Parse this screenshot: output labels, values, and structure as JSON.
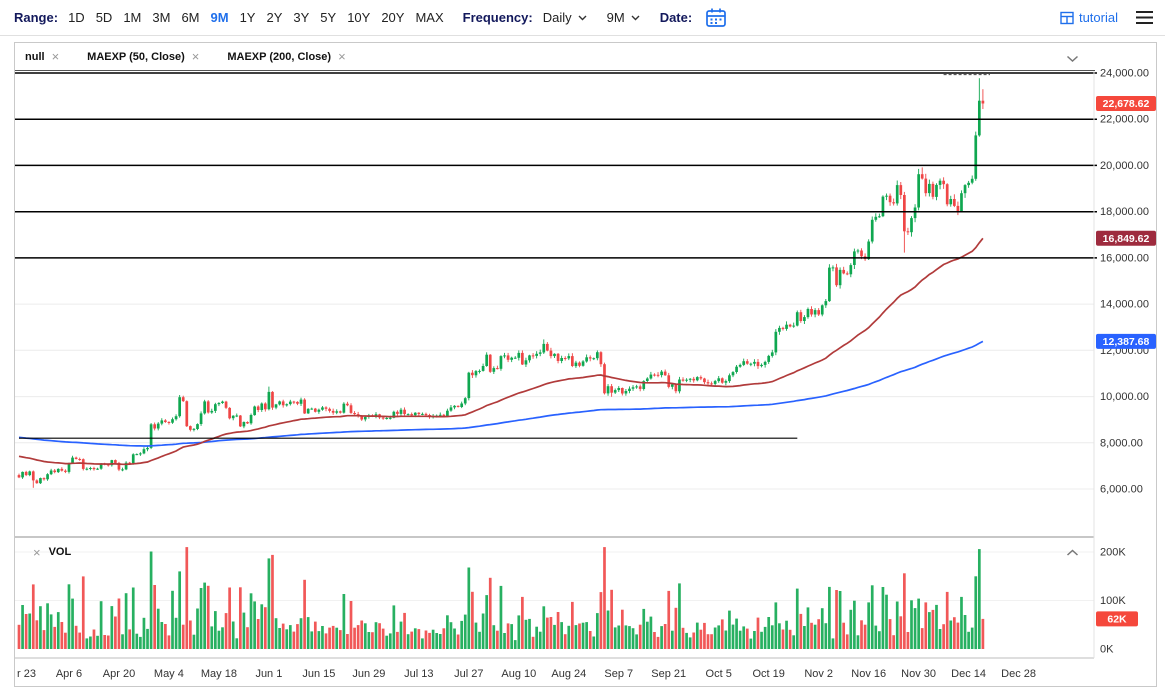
{
  "toolbar": {
    "range_label": "Range:",
    "ranges": [
      "1D",
      "5D",
      "1M",
      "3M",
      "6M",
      "9M",
      "1Y",
      "2Y",
      "3Y",
      "5Y",
      "10Y",
      "20Y",
      "MAX"
    ],
    "active_range": "9M",
    "frequency_label": "Frequency:",
    "frequency_value": "Daily",
    "period_value": "9M",
    "date_label": "Date:",
    "tutorial_label": "tutorial"
  },
  "legend": {
    "items": [
      {
        "label": "null"
      },
      {
        "label": "MAEXP (50, Close)"
      },
      {
        "label": "MAEXP (200, Close)"
      }
    ]
  },
  "vol_pane": {
    "label": "VOL"
  },
  "colors": {
    "up": "#0fa750",
    "down": "#ef4646",
    "ema50": "#b13b3b",
    "ema200": "#2962ff",
    "accent_blue": "#1f6feb",
    "level_line": "#000000"
  },
  "chart_data": {
    "type": "candlestick",
    "frequency": "Daily",
    "ylim": [
      3900,
      24100
    ],
    "price_ticks": [
      [
        24000,
        "24,000.00"
      ],
      [
        22000,
        "22,000.00"
      ],
      [
        20000,
        "20,000.00"
      ],
      [
        18000,
        "18,000.00"
      ],
      [
        16000,
        "16,000.00"
      ],
      [
        14000,
        "14,000.00"
      ],
      [
        12000,
        "12,000.00"
      ],
      [
        10000,
        "10,000.00"
      ],
      [
        8000,
        "8,000.00"
      ],
      [
        6000,
        "6,000.00"
      ]
    ],
    "vol_ticks": [
      [
        200,
        "200K"
      ],
      [
        100,
        "100K"
      ],
      [
        0,
        "0K"
      ]
    ],
    "x_ticks": [
      [
        0,
        "r 23"
      ],
      [
        14,
        "Apr 6"
      ],
      [
        28,
        "Apr 20"
      ],
      [
        42,
        "May 4"
      ],
      [
        56,
        "May 18"
      ],
      [
        70,
        "Jun 1"
      ],
      [
        84,
        "Jun 15"
      ],
      [
        98,
        "Jun 29"
      ],
      [
        112,
        "Jul 13"
      ],
      [
        126,
        "Jul 27"
      ],
      [
        140,
        "Aug 10"
      ],
      [
        154,
        "Aug 24"
      ],
      [
        168,
        "Sep 7"
      ],
      [
        182,
        "Sep 21"
      ],
      [
        196,
        "Oct 5"
      ],
      [
        210,
        "Oct 19"
      ],
      [
        224,
        "Nov 2"
      ],
      [
        238,
        "Nov 16"
      ],
      [
        252,
        "Nov 30"
      ],
      [
        266,
        "Dec 14"
      ],
      [
        280,
        "Dec 28"
      ]
    ],
    "levels": [
      24000,
      22000,
      20000,
      18000,
      16000
    ],
    "partial_level": {
      "value": 8200,
      "from_day": 0,
      "to_day": 218
    },
    "high_marker": {
      "value": 23930,
      "from_day": 259,
      "to_day": 272
    },
    "first_open": 6600,
    "closes": [
      6500,
      6740,
      6600,
      6760,
      6370,
      6250,
      6470,
      6420,
      6640,
      6800,
      6730,
      6870,
      6790,
      6740,
      7100,
      7360,
      7300,
      7290,
      6870,
      6880,
      6910,
      6860,
      6880,
      7100,
      7060,
      7030,
      7250,
      7130,
      6840,
      6850,
      7140,
      7120,
      7500,
      7510,
      7540,
      7720,
      7780,
      8800,
      8620,
      8830,
      8970,
      8900,
      8870,
      9020,
      9150,
      9970,
      9800,
      8720,
      8560,
      8600,
      8810,
      9270,
      9790,
      9310,
      9380,
      9670,
      9720,
      9780,
      9510,
      9060,
      9170,
      9180,
      8710,
      8900,
      8840,
      9200,
      9570,
      9420,
      9700,
      9450,
      10200,
      9520,
      9660,
      9790,
      9620,
      9670,
      9780,
      9770,
      9690,
      9870,
      9270,
      9470,
      9480,
      9340,
      9430,
      9530,
      9470,
      9380,
      9300,
      9360,
      9300,
      9690,
      9620,
      9290,
      9240,
      9160,
      9010,
      9120,
      9190,
      9140,
      9230,
      9090,
      9060,
      9070,
      9080,
      9340,
      9250,
      9430,
      9240,
      9240,
      9190,
      9300,
      9240,
      9250,
      9200,
      9130,
      9150,
      9170,
      9210,
      9160,
      9390,
      9530,
      9600,
      9550,
      9700,
      9930,
      11030,
      10920,
      11100,
      11110,
      11320,
      11810,
      11070,
      11230,
      11200,
      11750,
      11780,
      11590,
      11680,
      11680,
      11890,
      11390,
      11570,
      11780,
      11760,
      11850,
      11910,
      12280,
      11990,
      11750,
      11850,
      11540,
      11670,
      11650,
      11750,
      11320,
      11470,
      11330,
      11520,
      11700,
      11650,
      11660,
      11920,
      11400,
      10140,
      10450,
      10170,
      10280,
      10370,
      10130,
      10240,
      10340,
      10400,
      10440,
      10330,
      10670,
      10780,
      10950,
      10940,
      10930,
      11080,
      10920,
      10420,
      10530,
      10230,
      10740,
      10690,
      10730,
      10770,
      10700,
      10840,
      10780,
      10620,
      10570,
      10550,
      10670,
      10790,
      10600,
      10670,
      10920,
      11060,
      11290,
      11370,
      11530,
      11420,
      11420,
      11500,
      11320,
      11370,
      11500,
      11760,
      11910,
      12800,
      12970,
      12930,
      13110,
      13030,
      13070,
      13650,
      13270,
      13440,
      13790,
      13550,
      13740,
      13550,
      13950,
      14130,
      15580,
      15590,
      14820,
      15480,
      15330,
      15290,
      15690,
      16280,
      16320,
      16070,
      15950,
      16710,
      17650,
      17780,
      17800,
      18650,
      18690,
      18410,
      18360,
      19150,
      18720,
      17150,
      17110,
      17720,
      18180,
      19620,
      19430,
      18800,
      19200,
      18640,
      19160,
      19340,
      19190,
      18320,
      18550,
      18250,
      18030,
      18800,
      19150,
      19250,
      19420,
      21300,
      22800,
      22678.62
    ],
    "wick_overrides": {
      "4": {
        "low": 6050
      },
      "45": {
        "high": 10067
      },
      "70": {
        "high": 10429
      },
      "147": {
        "high": 12473
      },
      "166": {
        "low": 9990
      },
      "248": {
        "low": 16230
      },
      "252": {
        "high": 19850
      },
      "253": {
        "high": 19915
      },
      "269": {
        "high": 23777
      },
      "270": {
        "high": 23300
      }
    },
    "volume_overrides": {
      "37": 201,
      "38": 132,
      "43": 120,
      "45": 160,
      "71": 194,
      "126": 168,
      "127": 118,
      "166": 122,
      "212": 96,
      "227": 128,
      "238": 96,
      "243": 112,
      "246": 98,
      "248": 156,
      "252": 104,
      "268": 150,
      "269": 206,
      "270": 62
    },
    "ema_periods": [
      50,
      200
    ],
    "ema_seeds": [
      7450,
      8250
    ],
    "last_price": 22678.62,
    "ema50_last": 16849.62,
    "ema200_last": 12387.68,
    "badges": [
      {
        "value": 22678.62,
        "label": "22,678.62",
        "color": "#f5483c"
      },
      {
        "value": 16849.62,
        "label": "16,849.62",
        "color": "#9e2b3e"
      },
      {
        "value": 12387.68,
        "label": "12,387.68",
        "color": "#2962ff"
      }
    ],
    "vol_badge": {
      "value": 62,
      "label": "62K",
      "color": "#f5483c"
    }
  }
}
